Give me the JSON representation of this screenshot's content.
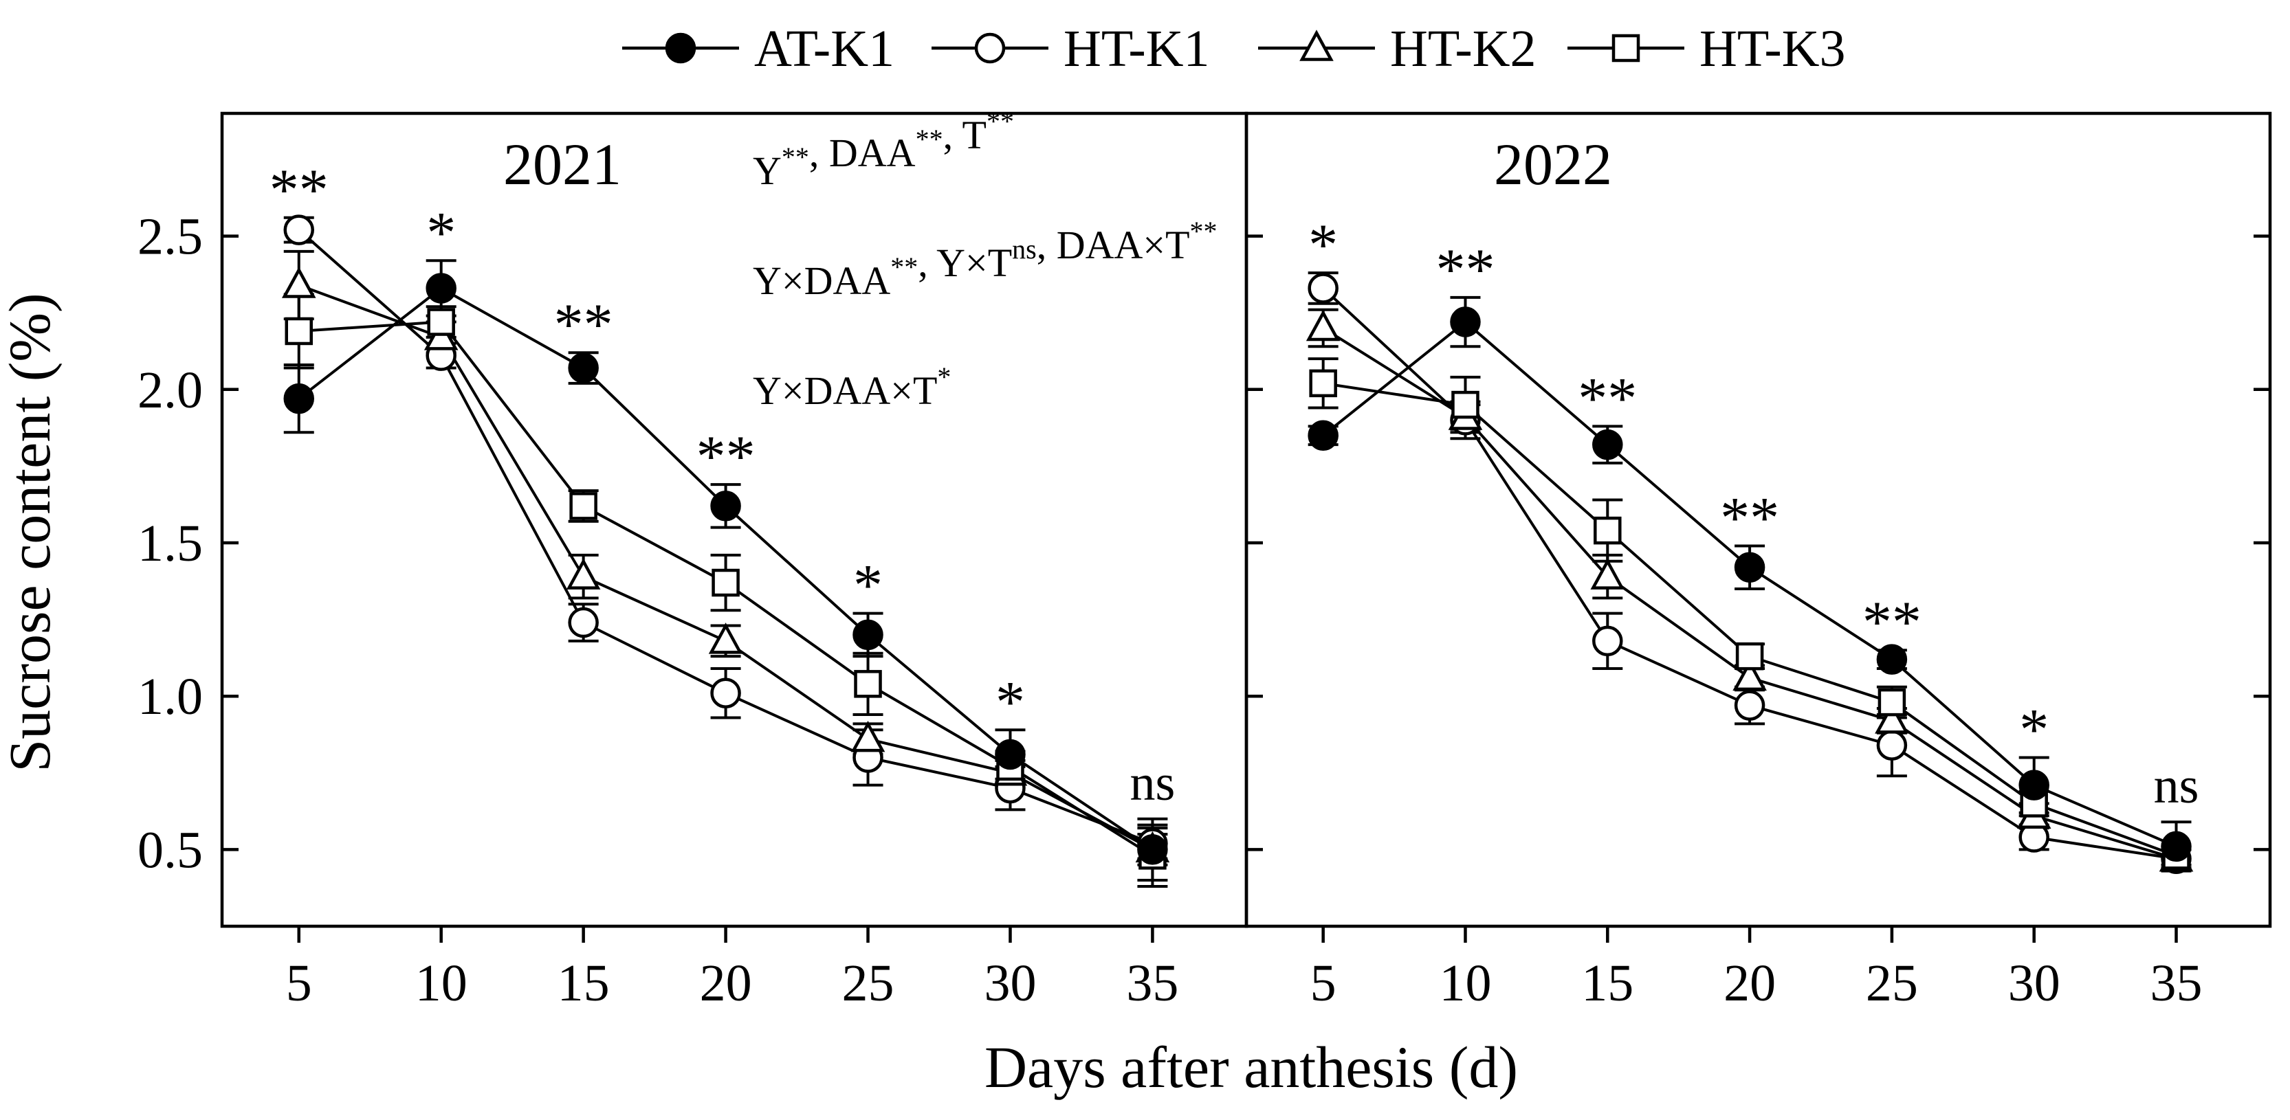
{
  "chart_data": {
    "type": "line",
    "ylabel": "Sucrose content (%)",
    "xlabel": "Days after anthesis (d)",
    "x": [
      5,
      10,
      15,
      20,
      25,
      30,
      35
    ],
    "xticks": [
      "5",
      "10",
      "15",
      "20",
      "25",
      "30",
      "35"
    ],
    "ylim": [
      0.25,
      2.9
    ],
    "yticks": [
      "0.5",
      "1.0",
      "1.5",
      "2.0",
      "2.5"
    ],
    "legend": {
      "position": "top-center",
      "entries": [
        "AT-K1",
        "HT-K1",
        "HT-K2",
        "HT-K3"
      ]
    },
    "series_style": [
      {
        "name": "AT-K1",
        "marker": "circle",
        "fill": "#000000"
      },
      {
        "name": "HT-K1",
        "marker": "circle",
        "fill": "#ffffff"
      },
      {
        "name": "HT-K2",
        "marker": "triangle",
        "fill": "#ffffff"
      },
      {
        "name": "HT-K3",
        "marker": "square",
        "fill": "#ffffff"
      }
    ],
    "panels": [
      {
        "title": "2021",
        "annotations": [
          {
            "lines": [
              [
                "Y",
                "**"
              ],
              [
                ", DAA",
                "**"
              ],
              [
                ", T",
                "**"
              ]
            ]
          },
          {
            "lines": [
              [
                "Y×DAA",
                "**"
              ],
              [
                ", Y×T",
                "ns"
              ],
              [
                ", DAA×T",
                "**"
              ]
            ]
          },
          {
            "lines": [
              [
                "Y×DAA×T",
                "*"
              ]
            ]
          }
        ],
        "significance": [
          "**",
          "*",
          "**",
          "**",
          "*",
          "*",
          "ns"
        ],
        "series": [
          {
            "name": "AT-K1",
            "values": [
              1.97,
              2.33,
              2.07,
              1.62,
              1.2,
              0.81,
              0.5
            ],
            "errors": [
              0.11,
              0.09,
              0.05,
              0.07,
              0.07,
              0.08,
              0.1
            ]
          },
          {
            "name": "HT-K1",
            "values": [
              2.52,
              2.11,
              1.24,
              1.01,
              0.8,
              0.7,
              0.52
            ],
            "errors": [
              0.04,
              0.04,
              0.06,
              0.08,
              0.09,
              0.07,
              0.05
            ]
          },
          {
            "name": "HT-K2",
            "values": [
              2.34,
              2.17,
              1.39,
              1.18,
              0.86,
              0.75,
              0.5
            ],
            "errors": [
              0.11,
              0.05,
              0.07,
              0.05,
              0.05,
              0.04,
              0.05
            ]
          },
          {
            "name": "HT-K3",
            "values": [
              2.19,
              2.22,
              1.62,
              1.37,
              1.04,
              0.77,
              0.48
            ],
            "errors": [
              0.12,
              0.05,
              0.05,
              0.09,
              0.1,
              0.05,
              0.1
            ]
          }
        ]
      },
      {
        "title": "2022",
        "annotations": [],
        "significance": [
          "*",
          "**",
          "**",
          "**",
          "**",
          "*",
          "ns"
        ],
        "series": [
          {
            "name": "AT-K1",
            "values": [
              1.85,
              2.22,
              1.82,
              1.42,
              1.12,
              0.71,
              0.51
            ],
            "errors": [
              0.03,
              0.08,
              0.06,
              0.07,
              0.03,
              0.09,
              0.08
            ]
          },
          {
            "name": "HT-K1",
            "values": [
              2.33,
              1.9,
              1.18,
              0.97,
              0.84,
              0.54,
              0.47
            ],
            "errors": [
              0.05,
              0.06,
              0.09,
              0.06,
              0.1,
              0.04,
              0.03
            ]
          },
          {
            "name": "HT-K2",
            "values": [
              2.2,
              1.91,
              1.39,
              1.06,
              0.92,
              0.61,
              0.47
            ],
            "errors": [
              0.06,
              0.04,
              0.07,
              0.04,
              0.04,
              0.04,
              0.03
            ]
          },
          {
            "name": "HT-K3",
            "values": [
              2.02,
              1.95,
              1.54,
              1.13,
              0.98,
              0.65,
              0.48
            ],
            "errors": [
              0.08,
              0.09,
              0.1,
              0.04,
              0.05,
              0.04,
              0.03
            ]
          }
        ]
      }
    ]
  }
}
